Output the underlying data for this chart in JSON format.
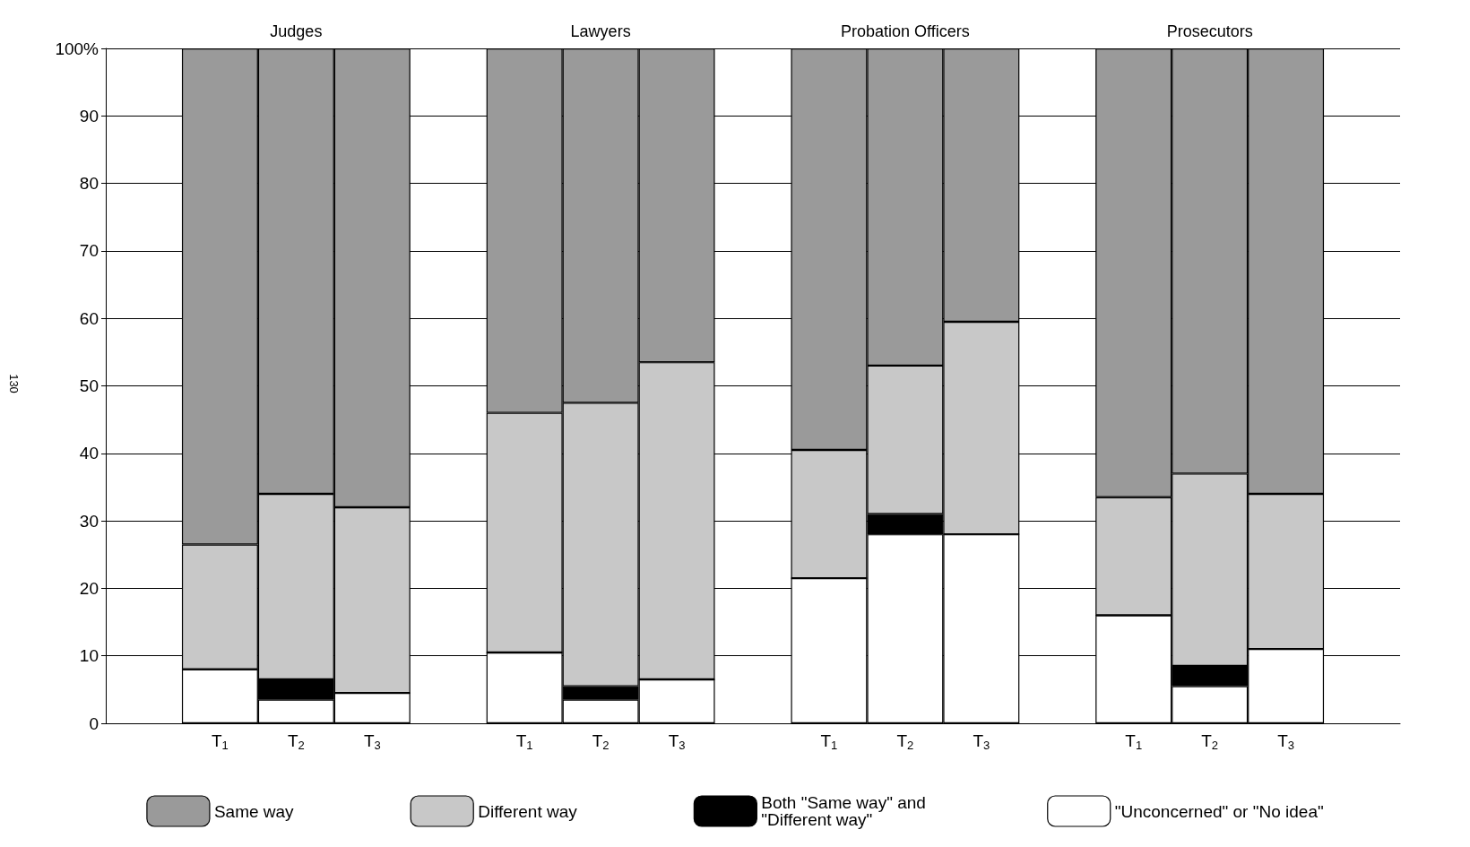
{
  "chart_data": {
    "type": "bar",
    "stacked": true,
    "categories": [
      null,
      "T$_{1}$",
      "T$_{2}$",
      "T$_{3}$",
      null,
      "T$_{1}$",
      "T$_{2}$",
      "T$_{3}$",
      null,
      "T$_{1}$",
      "T$_{2}$",
      "T$_{3}$",
      null,
      "T$_{1}$",
      "T$_{2}$",
      "T$_{3}$",
      null
    ],
    "series": [
      {
        "name": "\"Unconcerned\" or \"No idea\"",
        "color": "#ffffff",
        "values": [
          null,
          8,
          3.5,
          4.5,
          null,
          10.5,
          3.5,
          6.5,
          null,
          21.5,
          28,
          28,
          null,
          16,
          5.5,
          11,
          null
        ]
      },
      {
        "name": "Both \"Same way\" and \"Different way\"",
        "color": "#000000",
        "values": [
          null,
          0,
          3,
          0,
          null,
          0,
          2,
          0,
          null,
          0,
          3,
          0,
          null,
          0,
          3,
          0,
          null
        ]
      },
      {
        "name": "Different way",
        "color": "#c8c8c8",
        "values": [
          null,
          18.5,
          27.5,
          27.5,
          null,
          35.5,
          42,
          47,
          null,
          19,
          22,
          31.5,
          null,
          17.5,
          28.5,
          23,
          null
        ]
      },
      {
        "name": "Same way",
        "color": "#9a9a9a",
        "values": [
          null,
          73.5,
          66,
          68,
          null,
          54,
          52.5,
          46.5,
          null,
          59.5,
          47,
          40.5,
          null,
          66.5,
          63,
          66,
          null
        ]
      }
    ],
    "ylim": [
      0,
      100
    ],
    "yticks": [
      0,
      10,
      20,
      30,
      40,
      50,
      60,
      70,
      80,
      90,
      {
        "value": 100,
        "label": "100%"
      }
    ],
    "grid": "y",
    "legend": "bottom",
    "annotations": [
      "Judges",
      "Lawyers",
      "Probation Officers",
      "Prosecutors",
      "130"
    ]
  }
}
